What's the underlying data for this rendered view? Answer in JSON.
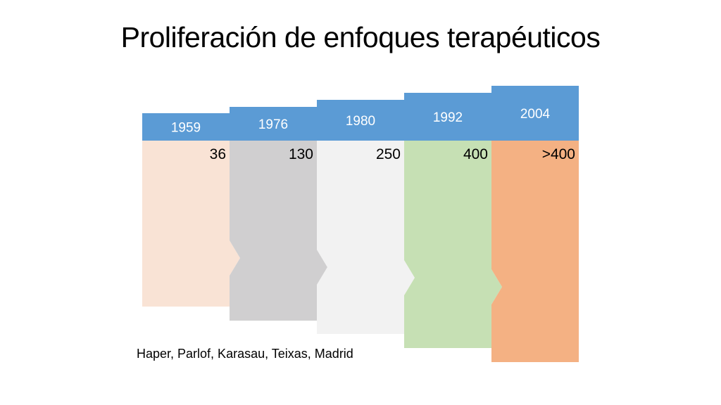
{
  "title": "Proliferación de enfoques terapéuticos",
  "stages": [
    {
      "year": "1959",
      "count": "36",
      "fill": "#f9e3d5"
    },
    {
      "year": "1976",
      "count": "130",
      "fill": "#d0cfd0"
    },
    {
      "year": "1980",
      "count": "250",
      "fill": "#f2f2f2"
    },
    {
      "year": "1992",
      "count": "400",
      "fill": "#c6e0b4"
    },
    {
      "year": "2004",
      "count": ">400",
      "fill": "#f4b183"
    }
  ],
  "header_color": "#5b9bd5",
  "source": "Haper, Parlof, Karasau, Teixas, Madrid"
}
